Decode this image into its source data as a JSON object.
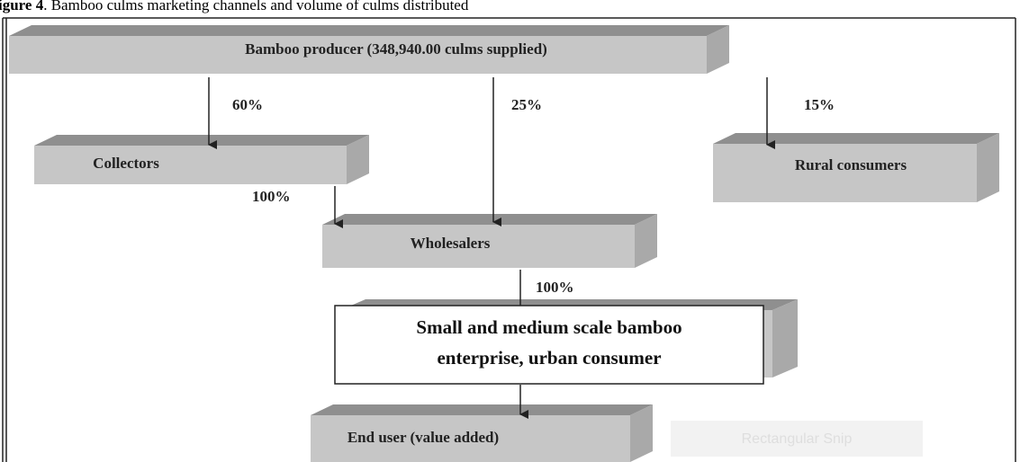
{
  "caption": {
    "label": "igure 4",
    "text": ". Bamboo culms marketing channels and volume of culms distributed"
  },
  "nodes": [
    {
      "label": "Bamboo producer (348,940.00 culms supplied)"
    },
    {
      "label": "Collectors"
    },
    {
      "label": "Rural consumers"
    },
    {
      "label": "Wholesalers"
    },
    {
      "label": [
        "Small and medium scale bamboo",
        "enterprise, urban consumer"
      ]
    },
    {
      "label": "End user (value added)"
    }
  ],
  "edges": [
    {
      "label": "60%"
    },
    {
      "label": "25%"
    },
    {
      "label": "15%"
    },
    {
      "label": "100%"
    },
    {
      "label": "100%"
    }
  ],
  "watermark": "Rectangular Snip"
}
